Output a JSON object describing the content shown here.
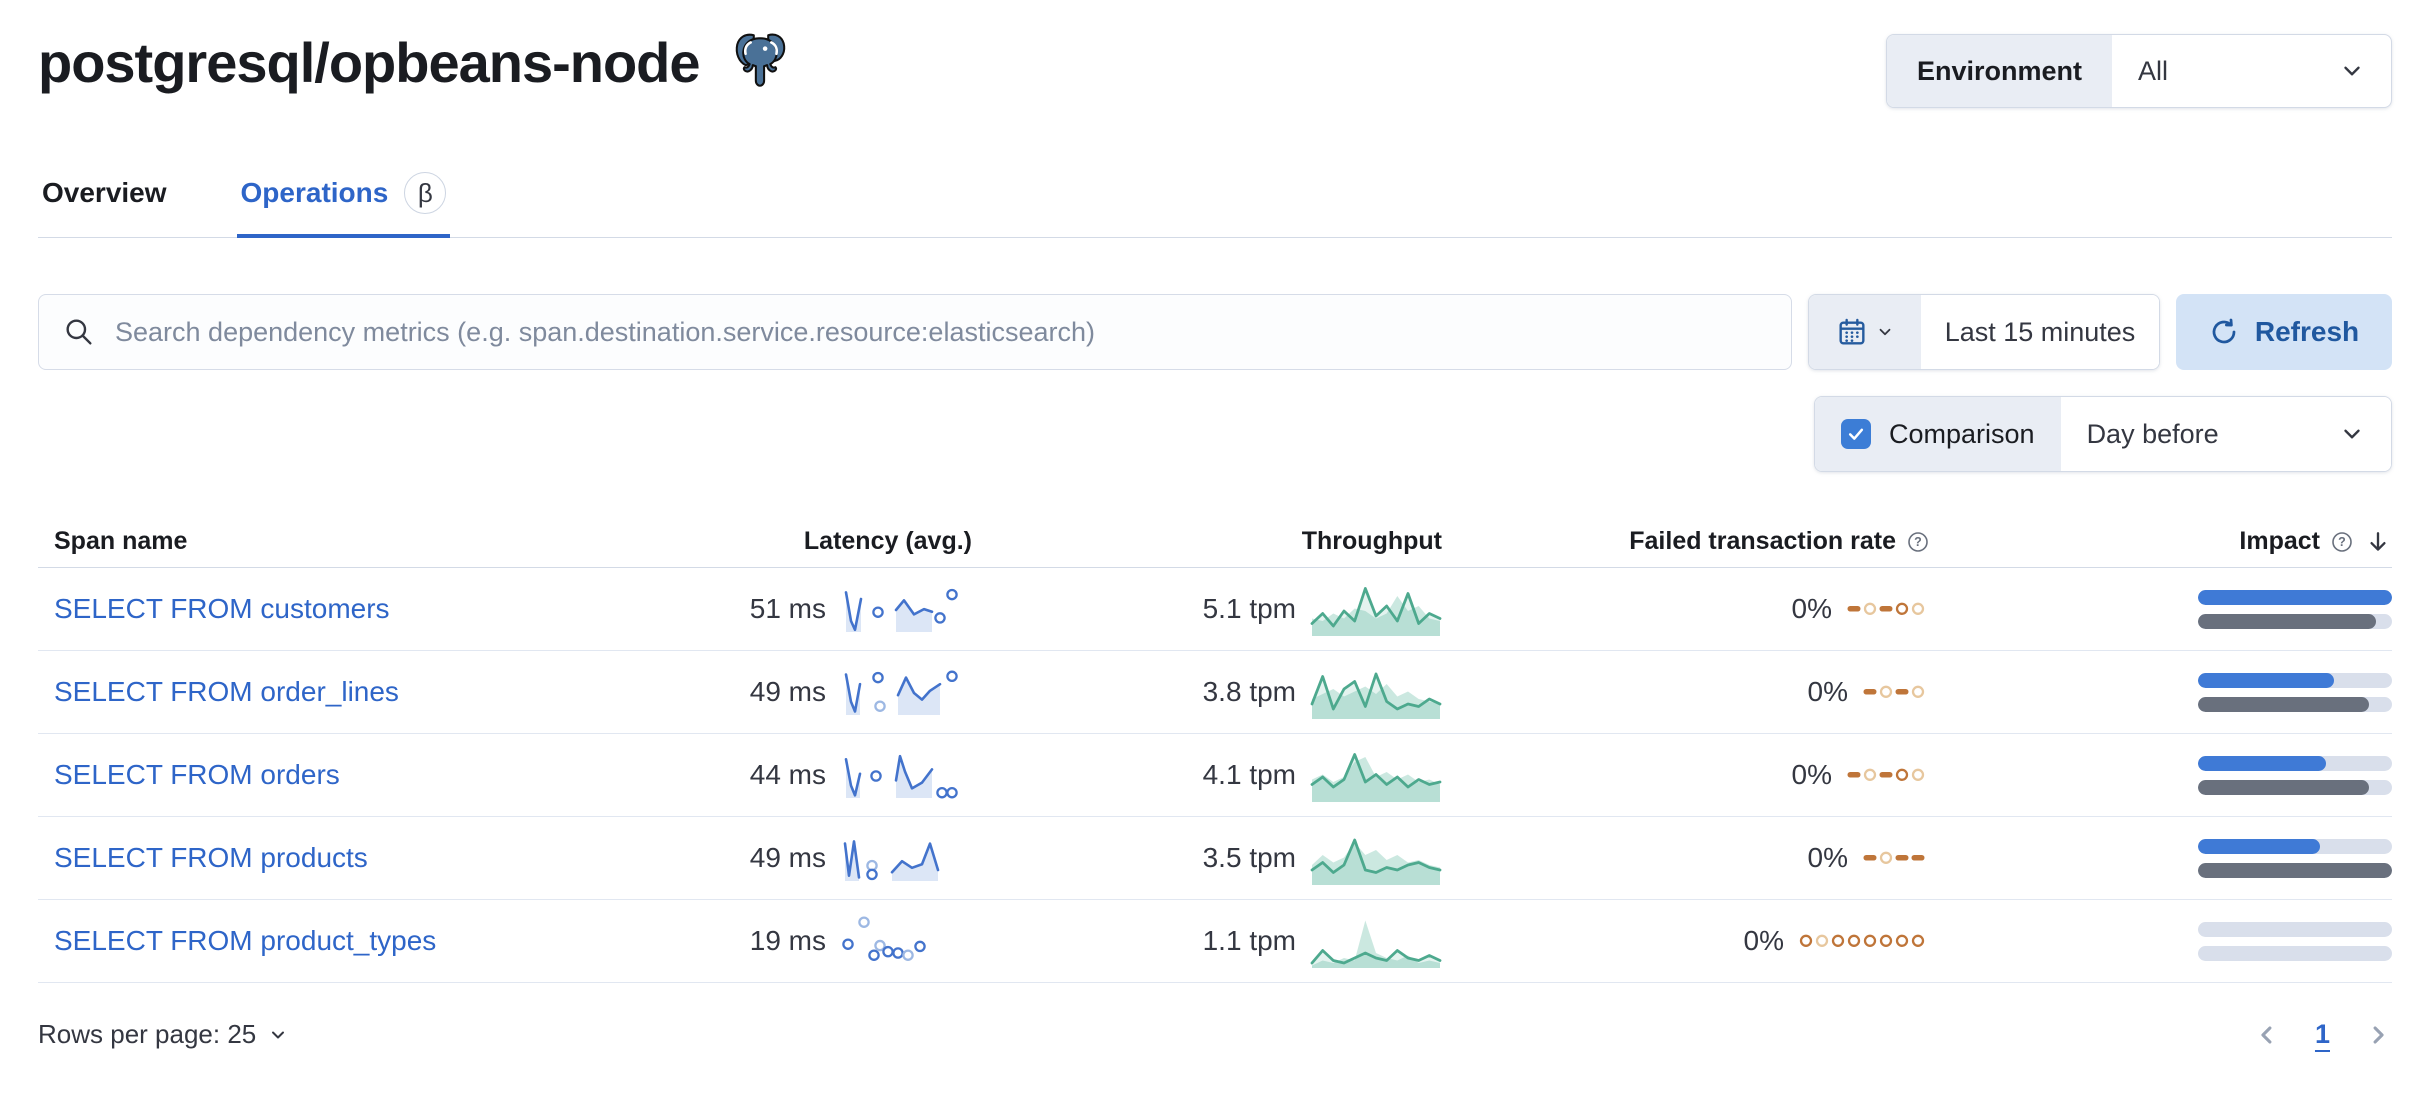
{
  "page": {
    "title": "postgresql/opbeans-node"
  },
  "environment": {
    "label": "Environment",
    "value": "All"
  },
  "tabs": {
    "overview": "Overview",
    "operations": "Operations",
    "beta": "β"
  },
  "toolbar": {
    "search_placeholder": "Search dependency metrics (e.g. span.destination.service.resource:elasticsearch)",
    "time_range": "Last 15 minutes",
    "refresh": "Refresh",
    "comparison_label": "Comparison",
    "comparison_checked": true,
    "comparison_value": "Day before"
  },
  "table": {
    "columns": {
      "span_name": "Span name",
      "latency": "Latency (avg.)",
      "throughput": "Throughput",
      "failed_rate": "Failed transaction rate",
      "impact": "Impact"
    },
    "rows": [
      {
        "name": "SELECT FROM customers",
        "latency": "51 ms",
        "throughput": "5.1 tpm",
        "failed_rate": "0%",
        "impact_current": 100,
        "impact_previous": 92,
        "latency_spark": {
          "lines": [
            [
              [
                6,
                0.9
              ],
              [
                11,
                0.25
              ],
              [
                15,
                0.05
              ],
              [
                21,
                0.75
              ]
            ],
            [
              [
                56,
                0.5
              ],
              [
                64,
                0.72
              ],
              [
                74,
                0.4
              ],
              [
                84,
                0.52
              ],
              [
                92,
                0.46
              ]
            ]
          ],
          "dots": [
            [
              38,
              0.45,
              "c"
            ],
            [
              100,
              0.32,
              "c"
            ],
            [
              112,
              0.85,
              "c"
            ]
          ]
        },
        "throughput_spark": {
          "current": [
            0.25,
            0.45,
            0.2,
            0.5,
            0.3,
            0.95,
            0.4,
            0.6,
            0.3,
            0.85,
            0.25,
            0.45,
            0.35
          ],
          "previous": [
            0.35,
            0.3,
            0.45,
            0.35,
            0.55,
            0.5,
            0.35,
            0.45,
            0.8,
            0.5,
            0.6,
            0.35,
            0.3
          ]
        },
        "failed_spark": [
          "dash-c",
          "ring-p",
          "dash-c",
          "ring-c",
          "ring-p"
        ]
      },
      {
        "name": "SELECT FROM order_lines",
        "latency": "49 ms",
        "throughput": "3.8 tpm",
        "failed_rate": "0%",
        "impact_current": 70,
        "impact_previous": 88,
        "latency_spark": {
          "lines": [
            [
              [
                6,
                0.92
              ],
              [
                11,
                0.3
              ],
              [
                15,
                0.08
              ],
              [
                20,
                0.7
              ]
            ],
            [
              [
                58,
                0.45
              ],
              [
                66,
                0.85
              ],
              [
                74,
                0.5
              ],
              [
                82,
                0.35
              ],
              [
                90,
                0.55
              ],
              [
                100,
                0.7
              ]
            ]
          ],
          "dots": [
            [
              38,
              0.85,
              "c"
            ],
            [
              40,
              0.2,
              "p"
            ],
            [
              112,
              0.88,
              "c"
            ]
          ]
        },
        "throughput_spark": {
          "current": [
            0.3,
            0.85,
            0.2,
            0.6,
            0.75,
            0.25,
            0.9,
            0.35,
            0.2,
            0.3,
            0.25,
            0.4,
            0.3
          ],
          "previous": [
            0.4,
            0.5,
            0.6,
            0.45,
            0.55,
            0.65,
            0.5,
            0.7,
            0.45,
            0.55,
            0.4,
            0.35,
            0.3
          ]
        },
        "failed_spark": [
          "dash-c",
          "ring-p",
          "dash-c",
          "ring-p"
        ]
      },
      {
        "name": "SELECT FROM orders",
        "latency": "44 ms",
        "throughput": "4.1 tpm",
        "failed_rate": "0%",
        "impact_current": 66,
        "impact_previous": 88,
        "latency_spark": {
          "lines": [
            [
              [
                6,
                0.88
              ],
              [
                11,
                0.28
              ],
              [
                15,
                0.06
              ],
              [
                20,
                0.55
              ]
            ],
            [
              [
                56,
                0.4
              ],
              [
                60,
                0.95
              ],
              [
                65,
                0.6
              ],
              [
                72,
                0.22
              ],
              [
                82,
                0.35
              ],
              [
                92,
                0.65
              ]
            ]
          ],
          "dots": [
            [
              36,
              0.5,
              "c"
            ],
            [
              102,
              0.12,
              "c"
            ],
            [
              112,
              0.12,
              "c"
            ]
          ]
        },
        "throughput_spark": {
          "current": [
            0.35,
            0.5,
            0.3,
            0.45,
            0.95,
            0.4,
            0.55,
            0.35,
            0.5,
            0.3,
            0.45,
            0.35,
            0.4
          ],
          "previous": [
            0.45,
            0.55,
            0.4,
            0.5,
            0.8,
            0.9,
            0.5,
            0.6,
            0.45,
            0.55,
            0.4,
            0.45,
            0.35
          ]
        },
        "failed_spark": [
          "dash-c",
          "ring-p",
          "dash-c",
          "ring-c",
          "ring-p"
        ]
      },
      {
        "name": "SELECT FROM products",
        "latency": "49 ms",
        "throughput": "3.5 tpm",
        "failed_rate": "0%",
        "impact_current": 63,
        "impact_previous": 100,
        "latency_spark": {
          "lines": [
            [
              [
                5,
                0.85
              ],
              [
                9,
                0.12
              ],
              [
                14,
                0.9
              ],
              [
                19,
                0.08
              ]
            ],
            [
              [
                52,
                0.2
              ],
              [
                62,
                0.45
              ],
              [
                72,
                0.3
              ],
              [
                82,
                0.38
              ],
              [
                90,
                0.85
              ],
              [
                98,
                0.25
              ]
            ]
          ],
          "dots": [
            [
              32,
              0.35,
              "p"
            ],
            [
              32,
              0.15,
              "c"
            ]
          ]
        },
        "throughput_spark": {
          "current": [
            0.3,
            0.45,
            0.25,
            0.4,
            0.9,
            0.3,
            0.25,
            0.35,
            0.3,
            0.4,
            0.45,
            0.35,
            0.3
          ],
          "previous": [
            0.4,
            0.6,
            0.45,
            0.55,
            0.85,
            0.6,
            0.7,
            0.5,
            0.6,
            0.45,
            0.5,
            0.4,
            0.35
          ]
        },
        "failed_spark": [
          "dash-c",
          "ring-p",
          "dash-c",
          "dash-c"
        ]
      },
      {
        "name": "SELECT FROM product_types",
        "latency": "19 ms",
        "throughput": "1.1 tpm",
        "failed_rate": "0%",
        "impact_current": 0,
        "impact_previous": 0,
        "latency_spark": {
          "lines": [],
          "dots": [
            [
              8,
              0.45,
              "c"
            ],
            [
              24,
              0.95,
              "p"
            ],
            [
              34,
              0.2,
              "c"
            ],
            [
              40,
              0.42,
              "p"
            ],
            [
              48,
              0.28,
              "c"
            ],
            [
              58,
              0.25,
              "c"
            ],
            [
              68,
              0.2,
              "p"
            ],
            [
              80,
              0.4,
              "c"
            ]
          ]
        },
        "throughput_spark": {
          "current": [
            0.1,
            0.35,
            0.15,
            0.1,
            0.2,
            0.3,
            0.2,
            0.15,
            0.35,
            0.2,
            0.15,
            0.25,
            0.15
          ],
          "previous": [
            0.05,
            0.15,
            0.1,
            0.2,
            0.15,
            0.95,
            0.3,
            0.2,
            0.15,
            0.25,
            0.1,
            0.15,
            0.1
          ]
        },
        "failed_spark": [
          "ring-c",
          "ring-p",
          "ring-c",
          "ring-c",
          "ring-c",
          "ring-c",
          "ring-c",
          "ring-c"
        ]
      }
    ]
  },
  "footer": {
    "rows_per_page": "Rows per page: 25",
    "page": "1"
  },
  "colors": {
    "link_blue": "#2e65c8",
    "bar_blue": "#3f7ad6",
    "bar_gray": "#69707d",
    "bar_track": "#d9dfeb",
    "lat_line": "#4373cc",
    "lat_fill": "#dce6f6",
    "lat_dot_light": "#9db8e3",
    "tp_line": "#4da98e",
    "tp_fill": "rgba(84,179,153,0.30)",
    "tp_fill_current": "rgba(84,179,153,0.16)",
    "fail_current": "#bf7539",
    "fail_previous": "#e7c79e"
  }
}
